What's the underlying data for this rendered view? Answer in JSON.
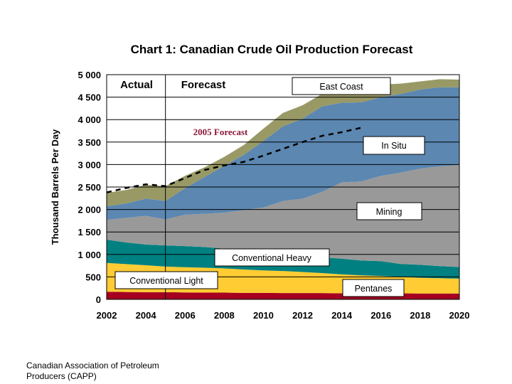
{
  "source_lines": [
    "Canadian Association of Petroleum",
    "Producers (CAPP)"
  ],
  "chart_data": {
    "type": "area",
    "stacked": true,
    "title": "Chart 1: Canadian Crude Oil Production Forecast",
    "xlabel": "",
    "ylabel": "Thousand Barrels Per Day",
    "xlim": [
      2002,
      2020
    ],
    "ylim": [
      0,
      5000
    ],
    "x_ticks": [
      "2002",
      "2004",
      "2006",
      "2008",
      "2010",
      "2012",
      "2014",
      "2016",
      "2018",
      "2020"
    ],
    "y_ticks": [
      "0",
      "500",
      "1 000",
      "1 500",
      "2 000",
      "2 500",
      "3 000",
      "3 500",
      "4 000",
      "4 500",
      "5 000"
    ],
    "grid": "horizontal",
    "region_labels": [
      "Actual",
      "Forecast"
    ],
    "divider_x": 2005,
    "x": [
      2002,
      2003,
      2004,
      2005,
      2006,
      2007,
      2008,
      2009,
      2010,
      2011,
      2012,
      2013,
      2014,
      2015,
      2016,
      2017,
      2018,
      2019,
      2020
    ],
    "series": [
      {
        "name": "Pentanes",
        "color": "#a50021",
        "values": [
          170,
          165,
          160,
          160,
          155,
          150,
          150,
          145,
          145,
          140,
          140,
          140,
          135,
          135,
          135,
          135,
          130,
          130,
          130
        ]
      },
      {
        "name": "Conventional Light",
        "color": "#ffcc33",
        "values": [
          640,
          620,
          600,
          570,
          560,
          555,
          540,
          520,
          500,
          490,
          470,
          445,
          420,
          400,
          385,
          365,
          350,
          340,
          330
        ]
      },
      {
        "name": "Conventional Heavy",
        "color": "#008080",
        "values": [
          520,
          480,
          460,
          470,
          470,
          460,
          440,
          420,
          400,
          380,
          360,
          350,
          350,
          330,
          330,
          290,
          290,
          270,
          260
        ]
      },
      {
        "name": "Mining",
        "color": "#999999",
        "values": [
          440,
          550,
          640,
          580,
          700,
          740,
          800,
          900,
          1000,
          1180,
          1270,
          1460,
          1700,
          1760,
          1900,
          2030,
          2140,
          2220,
          2270
        ]
      },
      {
        "name": "In Situ",
        "color": "#5b87b1",
        "values": [
          300,
          320,
          380,
          410,
          590,
          820,
          1040,
          1230,
          1480,
          1660,
          1780,
          1900,
          1770,
          1760,
          1750,
          1750,
          1760,
          1760,
          1730
        ]
      },
      {
        "name": "East Coast",
        "color": "#999966",
        "values": [
          300,
          300,
          310,
          330,
          275,
          215,
          200,
          220,
          275,
          300,
          300,
          280,
          300,
          310,
          280,
          230,
          180,
          180,
          170
        ]
      }
    ],
    "forecast_2005": {
      "name": "2005 Forecast",
      "x": [
        2002,
        2003,
        2004,
        2005,
        2006,
        2007,
        2008,
        2009,
        2010,
        2011,
        2012,
        2013,
        2014,
        2015
      ],
      "values": [
        2380,
        2480,
        2560,
        2520,
        2700,
        2880,
        2980,
        3060,
        3200,
        3350,
        3500,
        3640,
        3720,
        3820
      ]
    },
    "labels": [
      "East Coast",
      "In Situ",
      "Mining",
      "Conventional Heavy",
      "Conventional Light",
      "Pentanes"
    ],
    "forecast_label": "2005 Forecast"
  }
}
